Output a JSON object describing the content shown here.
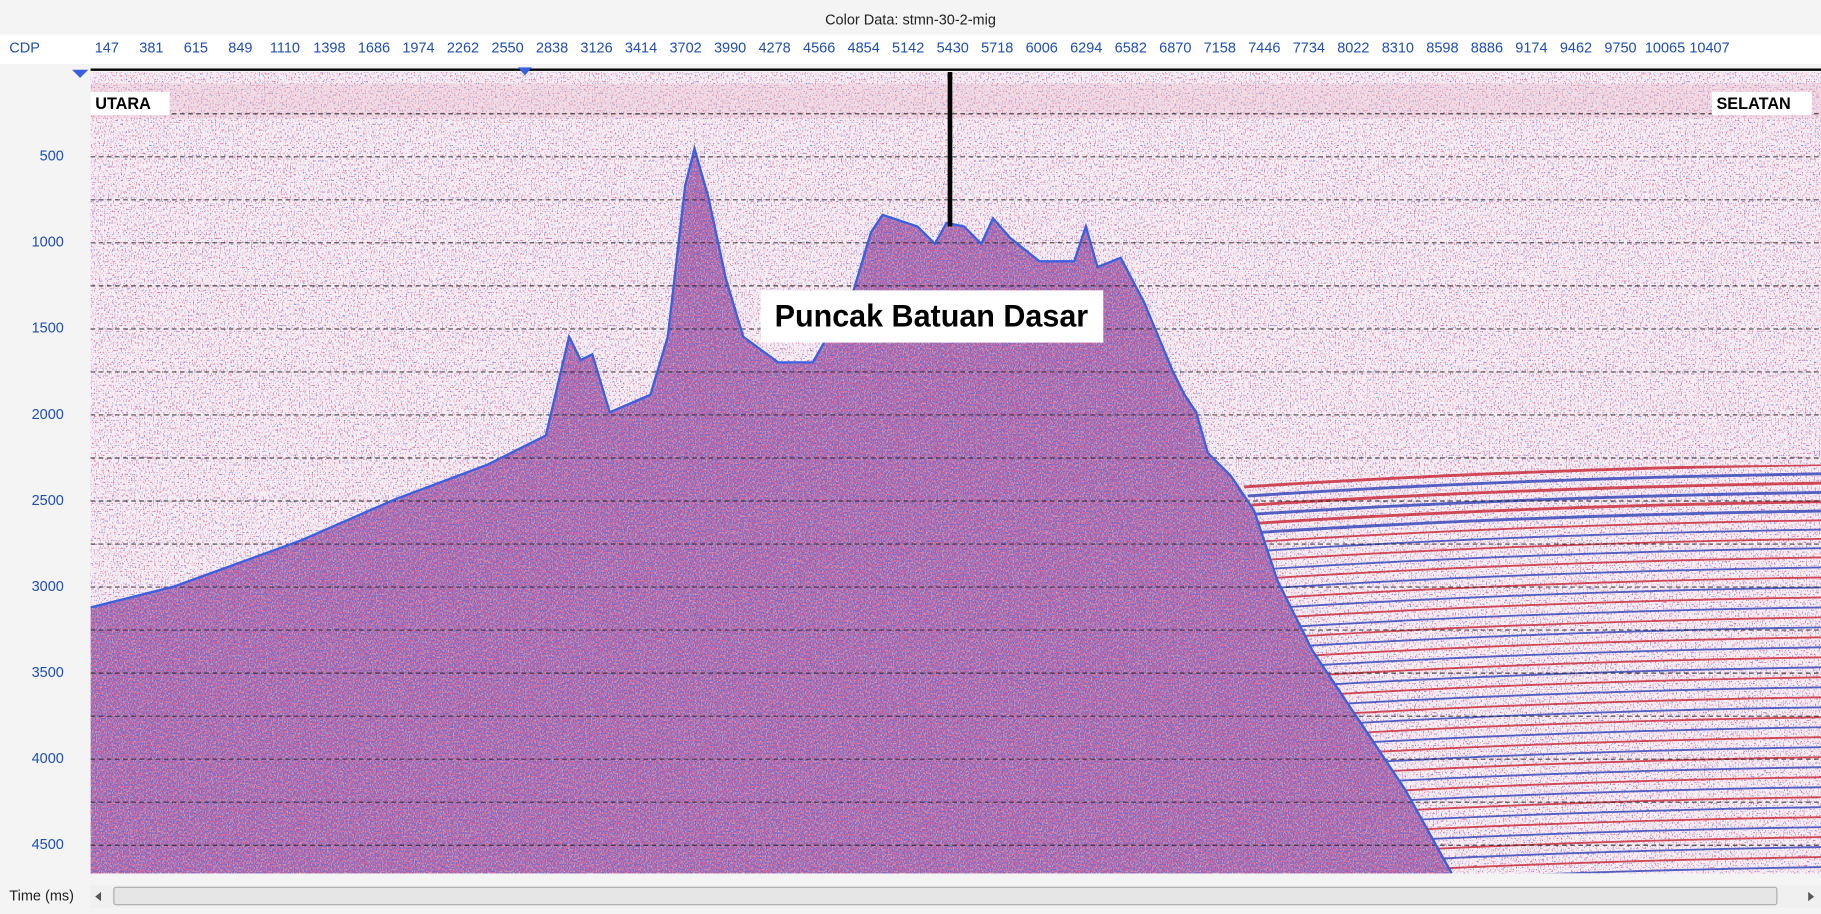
{
  "header": {
    "title": "Color Data: stmn-30-2-mig"
  },
  "x_axis": {
    "label": "CDP",
    "ticks": [
      147,
      381,
      615,
      849,
      1110,
      1398,
      1686,
      1974,
      2262,
      2550,
      2838,
      3126,
      3414,
      3702,
      3990,
      4278,
      4566,
      4854,
      5142,
      5430,
      5718,
      6006,
      6294,
      6582,
      6870,
      7158,
      7446,
      7734,
      8022,
      8310,
      8598,
      8886,
      9174,
      9462,
      9750,
      10065,
      10407
    ]
  },
  "y_axis": {
    "label": "Time (ms)",
    "ticks": [
      500,
      1000,
      1500,
      2000,
      2500,
      3000,
      3500,
      4000,
      4500
    ]
  },
  "annotations": {
    "left": "UTARA",
    "right": "SELATAN",
    "feature": "Puncak Batuan Dasar"
  }
}
